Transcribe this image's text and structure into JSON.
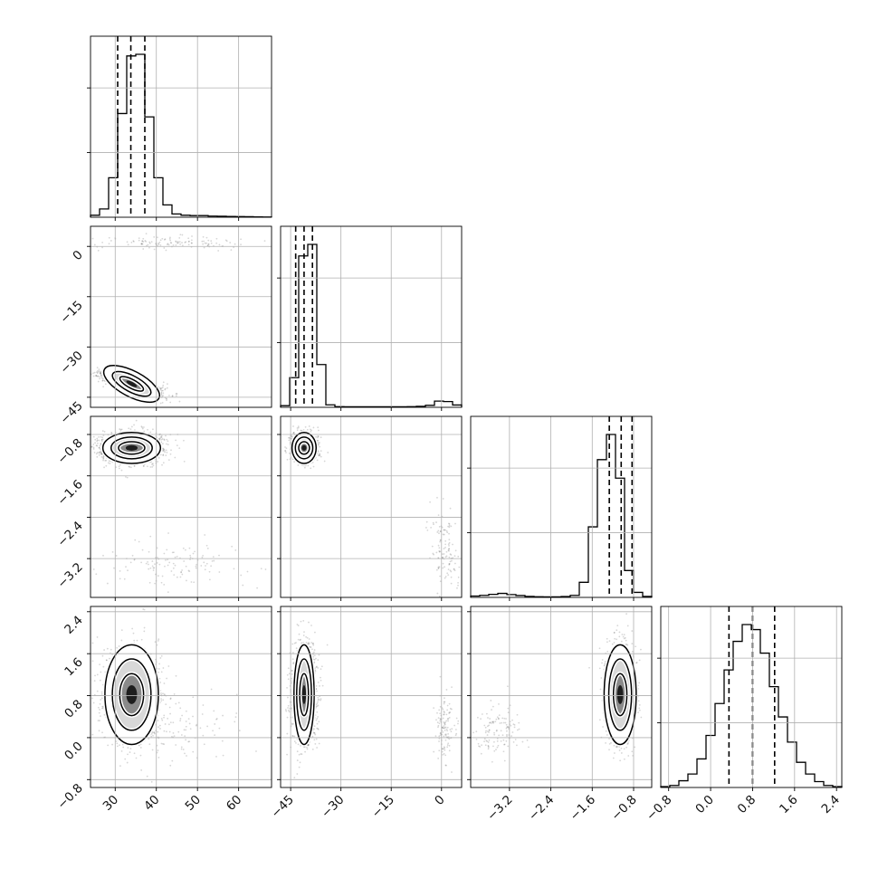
{
  "chart_data": {
    "type": "corner",
    "variables": [
      {
        "range": [
          24,
          68
        ],
        "ticks": [
          30,
          40,
          50,
          60
        ],
        "tick_labels": [
          "30",
          "40",
          "50",
          "60"
        ]
      },
      {
        "range": [
          -48,
          6
        ],
        "ticks": [
          -45,
          -30,
          -15,
          0
        ],
        "tick_labels": [
          "−45",
          "−30",
          "−15",
          "0"
        ]
      },
      {
        "range": [
          -3.95,
          -0.45
        ],
        "ticks": [
          -3.2,
          -2.4,
          -1.6,
          -0.8
        ],
        "tick_labels": [
          "−3.2",
          "−2.4",
          "−1.6",
          "−0.8"
        ]
      },
      {
        "range": [
          -0.95,
          2.5
        ],
        "ticks": [
          -0.8,
          0.0,
          0.8,
          1.6,
          2.4
        ],
        "tick_labels": [
          "−0.8",
          "0.0",
          "0.8",
          "1.6",
          "2.4"
        ]
      }
    ],
    "quantiles": [
      [
        30.6,
        33.8,
        37.2
      ],
      [
        -43.5,
        -41.0,
        -38.5
      ],
      [
        -1.27,
        -1.04,
        -0.83
      ],
      [
        0.35,
        0.8,
        1.22
      ]
    ],
    "histograms": [
      {
        "bin_edges": [
          24,
          26.2,
          28.4,
          30.6,
          32.8,
          35,
          37.2,
          39.4,
          41.6,
          43.8,
          46,
          48.2,
          50.4,
          52.6,
          54.8,
          57,
          59.2,
          61.4,
          63.6,
          65.8,
          68
        ],
        "counts": [
          0.012,
          0.05,
          0.24,
          0.63,
          0.98,
          0.99,
          0.61,
          0.24,
          0.075,
          0.02,
          0.012,
          0.01,
          0.01,
          0.007,
          0.006,
          0.005,
          0.004,
          0.003,
          0.002,
          0.001
        ]
      },
      {
        "bin_edges": [
          -48,
          -45.3,
          -42.6,
          -39.9,
          -37.2,
          -34.5,
          -31.8,
          -29.1,
          -26.4,
          -23.7,
          -21,
          -18.3,
          -15.6,
          -12.9,
          -10.2,
          -7.5,
          -4.8,
          -2.1,
          0.6,
          3.3,
          6
        ],
        "counts": [
          0.01,
          0.18,
          0.92,
          0.99,
          0.26,
          0.015,
          0.004,
          0.003,
          0.003,
          0.003,
          0.003,
          0.003,
          0.003,
          0.003,
          0.004,
          0.006,
          0.012,
          0.038,
          0.035,
          0.014
        ]
      },
      {
        "bin_edges": [
          -3.95,
          -3.775,
          -3.6,
          -3.425,
          -3.25,
          -3.075,
          -2.9,
          -2.725,
          -2.55,
          -2.375,
          -2.2,
          -2.025,
          -1.85,
          -1.675,
          -1.5,
          -1.325,
          -1.15,
          -0.975,
          -0.8,
          -0.625,
          -0.45
        ],
        "counts": [
          0.008,
          0.012,
          0.018,
          0.024,
          0.017,
          0.011,
          0.006,
          0.004,
          0.003,
          0.003,
          0.005,
          0.012,
          0.09,
          0.42,
          0.82,
          0.97,
          0.71,
          0.16,
          0.03,
          0.006
        ]
      },
      {
        "bin_edges": [
          -0.95,
          -0.7775,
          -0.605,
          -0.4325,
          -0.26,
          -0.0875,
          0.085,
          0.2575,
          0.43,
          0.6025,
          0.775,
          0.9475,
          1.12,
          1.2925,
          1.465,
          1.6375,
          1.81,
          1.9825,
          2.155,
          2.3275,
          2.5
        ],
        "counts": [
          0.005,
          0.012,
          0.04,
          0.08,
          0.17,
          0.31,
          0.5,
          0.7,
          0.87,
          0.97,
          0.94,
          0.8,
          0.6,
          0.42,
          0.27,
          0.15,
          0.08,
          0.035,
          0.012,
          0.005
        ]
      }
    ],
    "pairs": [
      {
        "row": 1,
        "col": 0,
        "modes": [
          {
            "weight": 0.92,
            "mean": [
              34,
              -41
            ],
            "sd": [
              3.5,
              1.7
            ],
            "corr": -0.75
          },
          {
            "weight": 0.08,
            "mean": [
              44,
              1
            ],
            "sd": [
              9,
              1.2
            ],
            "corr": 0
          }
        ],
        "contour_levels": [
          {
            "mean": [
              34,
              -41
            ],
            "half_axes": [
              7.5,
              3.8
            ],
            "rotation": -28
          },
          {
            "mean": [
              34,
              -41
            ],
            "half_axes": [
              5.2,
              2.4
            ],
            "rotation": -28
          },
          {
            "mean": [
              34,
              -41
            ],
            "half_axes": [
              3.2,
              1.3
            ],
            "rotation": -28
          }
        ]
      },
      {
        "row": 2,
        "col": 0,
        "modes": [
          {
            "weight": 0.92,
            "mean": [
              34,
              -1.06
            ],
            "sd": [
              3.8,
              0.14
            ],
            "corr": 0
          },
          {
            "weight": 0.08,
            "mean": [
              44,
              -3.3
            ],
            "sd": [
              8,
              0.25
            ],
            "corr": 0
          }
        ],
        "contour_levels": [
          {
            "mean": [
              34,
              -1.06
            ],
            "half_axes": [
              7.0,
              0.3
            ]
          },
          {
            "mean": [
              34,
              -1.06
            ],
            "half_axes": [
              5.0,
              0.21
            ]
          },
          {
            "mean": [
              34,
              -1.06
            ],
            "half_axes": [
              3.2,
              0.12
            ]
          }
        ]
      },
      {
        "row": 2,
        "col": 1,
        "modes": [
          {
            "weight": 0.92,
            "mean": [
              -41,
              -1.06
            ],
            "sd": [
              1.8,
              0.14
            ],
            "corr": 0
          },
          {
            "weight": 0.08,
            "mean": [
              1,
              -3.0
            ],
            "sd": [
              2.5,
              0.4
            ],
            "corr": -0.4
          }
        ],
        "contour_levels": [
          {
            "mean": [
              -41,
              -1.06
            ],
            "half_axes": [
              3.6,
              0.3
            ]
          },
          {
            "mean": [
              -41,
              -1.06
            ],
            "half_axes": [
              2.6,
              0.21
            ]
          },
          {
            "mean": [
              -41,
              -1.06
            ],
            "half_axes": [
              1.6,
              0.12
            ]
          }
        ]
      },
      {
        "row": 3,
        "col": 0,
        "modes": [
          {
            "weight": 0.92,
            "mean": [
              34,
              0.82
            ],
            "sd": [
              3.5,
              0.45
            ],
            "corr": 0
          },
          {
            "weight": 0.08,
            "mean": [
              44,
              0.15
            ],
            "sd": [
              8,
              0.3
            ],
            "corr": 0
          }
        ],
        "contour_levels": [
          {
            "mean": [
              34,
              0.82
            ],
            "half_axes": [
              6.5,
              0.95
            ]
          },
          {
            "mean": [
              34,
              0.82
            ],
            "half_axes": [
              4.7,
              0.68
            ]
          },
          {
            "mean": [
              34,
              0.82
            ],
            "half_axes": [
              2.9,
              0.4
            ]
          }
        ]
      },
      {
        "row": 3,
        "col": 1,
        "modes": [
          {
            "weight": 0.92,
            "mean": [
              -41,
              0.82
            ],
            "sd": [
              1.8,
              0.45
            ],
            "corr": 0
          },
          {
            "weight": 0.08,
            "mean": [
              1,
              0.2
            ],
            "sd": [
              1.5,
              0.3
            ],
            "corr": 0
          }
        ],
        "contour_levels": [
          {
            "mean": [
              -41,
              0.82
            ],
            "half_axes": [
              3.0,
              0.95
            ]
          },
          {
            "mean": [
              -41,
              0.82
            ],
            "half_axes": [
              2.2,
              0.68
            ]
          },
          {
            "mean": [
              -41,
              0.82
            ],
            "half_axes": [
              1.3,
              0.4
            ]
          }
        ]
      },
      {
        "row": 3,
        "col": 2,
        "modes": [
          {
            "weight": 0.92,
            "mean": [
              -1.06,
              0.82
            ],
            "sd": [
              0.14,
              0.45
            ],
            "corr": 0
          },
          {
            "weight": 0.08,
            "mean": [
              -3.45,
              0.15
            ],
            "sd": [
              0.25,
              0.25
            ],
            "corr": 0
          }
        ],
        "contour_levels": [
          {
            "mean": [
              -1.06,
              0.82
            ],
            "half_axes": [
              0.31,
              0.95
            ]
          },
          {
            "mean": [
              -1.06,
              0.82
            ],
            "half_axes": [
              0.22,
              0.68
            ]
          },
          {
            "mean": [
              -1.06,
              0.82
            ],
            "half_axes": [
              0.13,
              0.4
            ]
          }
        ]
      }
    ],
    "grid": true,
    "point_color": "#000000",
    "density_color": "#000000",
    "line_color": "#000000"
  }
}
